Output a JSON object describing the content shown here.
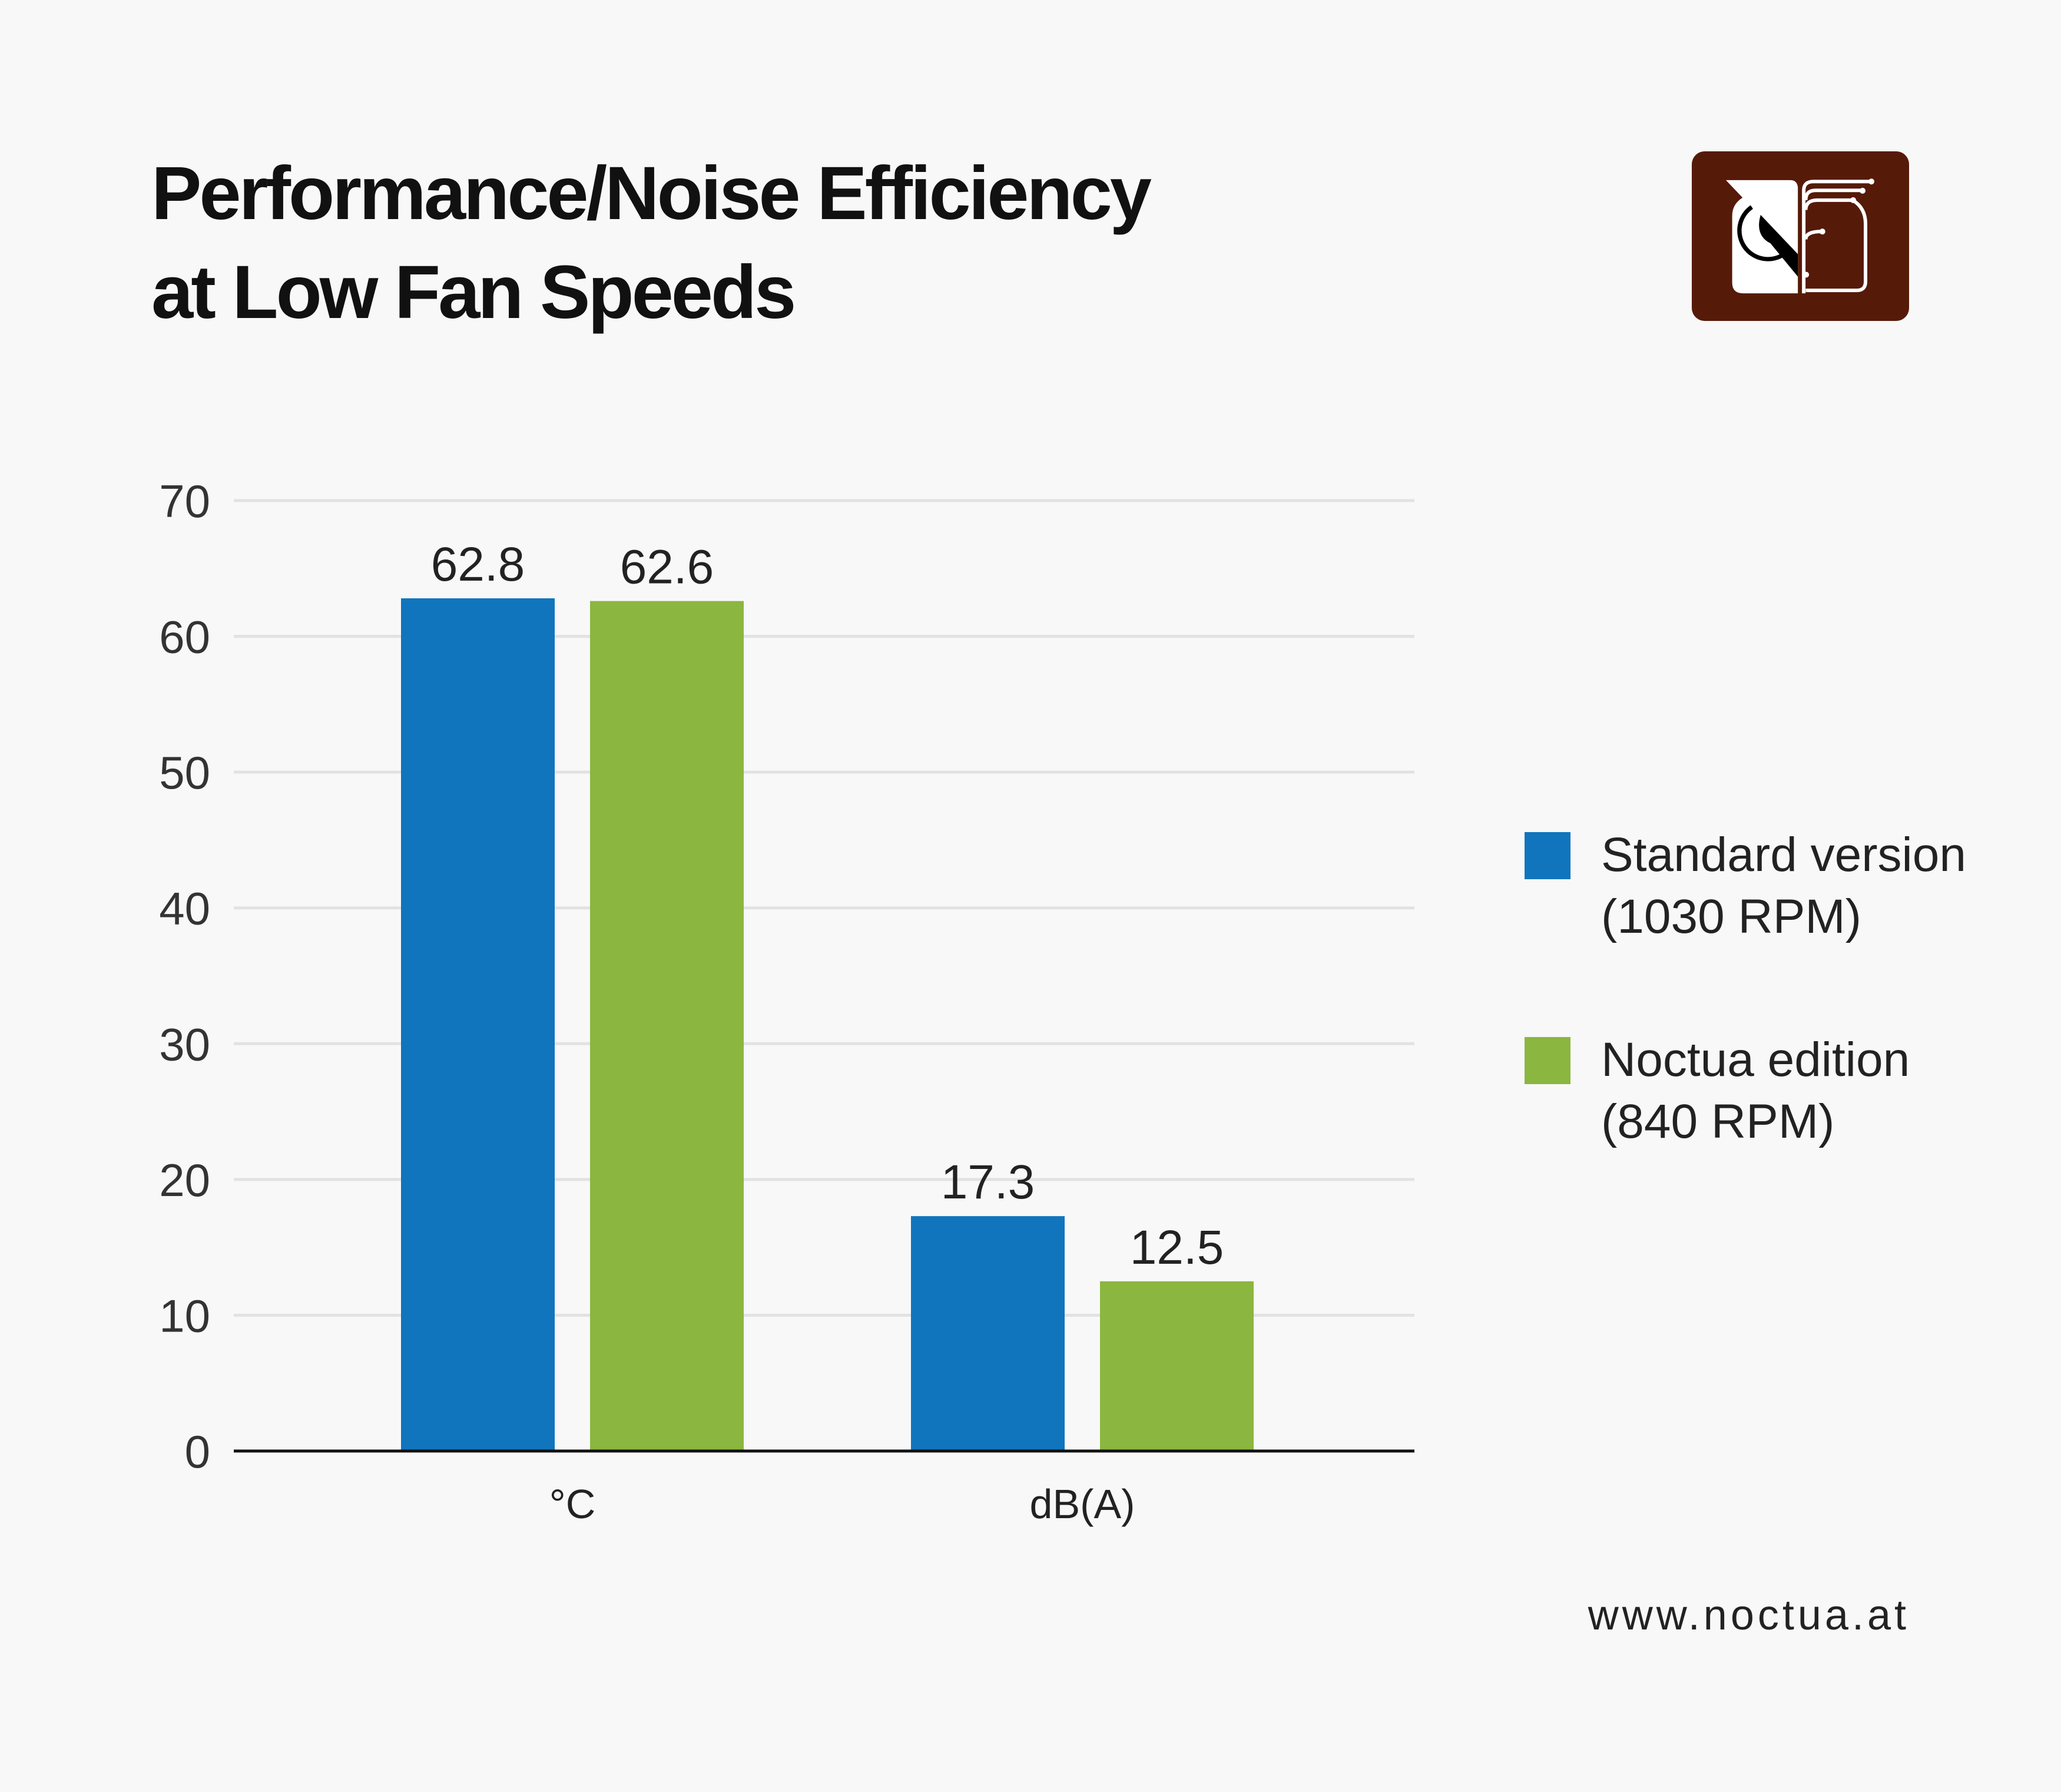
{
  "title_lines": [
    "Performance/Noise Efficiency",
    "at Low Fan Speeds"
  ],
  "footer_url": "www.noctua.at",
  "logo": {
    "name": "noctua-owl-logo",
    "background": "#561a08"
  },
  "chart_data": {
    "type": "bar",
    "title": "Performance/Noise Efficiency at Low Fan Speeds",
    "categories": [
      "°C",
      "dB(A)"
    ],
    "series": [
      {
        "name": "Standard version (1030 RPM)",
        "legend_lines": [
          "Standard version",
          "(1030 RPM)"
        ],
        "color": "#1075bd",
        "values": [
          62.8,
          17.3
        ]
      },
      {
        "name": "Noctua edition (840 RPM)",
        "legend_lines": [
          "Noctua edition",
          "(840 RPM)"
        ],
        "color": "#8bb640",
        "values": [
          62.6,
          12.5
        ]
      }
    ],
    "ylim": [
      0,
      70
    ],
    "yticks": [
      0,
      10,
      20,
      30,
      40,
      50,
      60,
      70
    ],
    "grid": true,
    "legend": "right",
    "xlabel": "",
    "ylabel": ""
  }
}
